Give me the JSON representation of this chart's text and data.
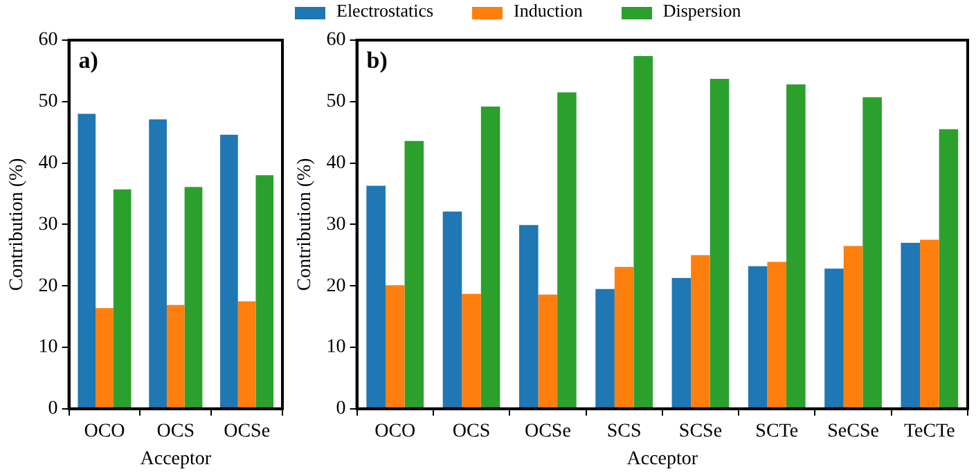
{
  "chart_data": [
    {
      "type": "bar",
      "annotations": [
        "a)"
      ],
      "xlabel": "Acceptor",
      "ylabel": "Contribution (%)",
      "categories": [
        "OCO",
        "OCS",
        "OCSe"
      ],
      "series": [
        {
          "color": "#1f77b4",
          "values": [
            48.0,
            47.1,
            44.6
          ]
        },
        {
          "color": "#ff7f0e",
          "values": [
            16.4,
            16.9,
            17.5
          ]
        },
        {
          "color": "#2ca02c",
          "values": [
            35.7,
            36.1,
            38.0
          ]
        }
      ],
      "ylim": [
        0,
        60
      ],
      "yticks": [
        0,
        10,
        20,
        30,
        40,
        50,
        60
      ],
      "grid": false,
      "legend": false
    },
    {
      "type": "bar",
      "annotations": [
        "b)"
      ],
      "xlabel": "Acceptor",
      "ylabel": "Contribution (%)",
      "categories": [
        "OCO",
        "OCS",
        "OCSe",
        "SCS",
        "SCSe",
        "SCTe",
        "SeCSe",
        "TeCTe"
      ],
      "series": [
        {
          "name": "Electrostatics",
          "color": "#1f77b4",
          "values": [
            36.3,
            32.1,
            29.9,
            19.5,
            21.3,
            23.2,
            22.8,
            27.0
          ]
        },
        {
          "name": "Induction",
          "color": "#ff7f0e",
          "values": [
            20.1,
            18.7,
            18.6,
            23.1,
            25.0,
            23.9,
            26.5,
            27.5
          ]
        },
        {
          "name": "Dispersion",
          "color": "#2ca02c",
          "values": [
            43.6,
            49.2,
            51.5,
            57.4,
            53.7,
            52.8,
            50.7,
            45.5
          ]
        }
      ],
      "ylim": [
        0,
        60
      ],
      "yticks": [
        0,
        10,
        20,
        30,
        40,
        50,
        60
      ],
      "grid": false,
      "legend": "top"
    }
  ]
}
